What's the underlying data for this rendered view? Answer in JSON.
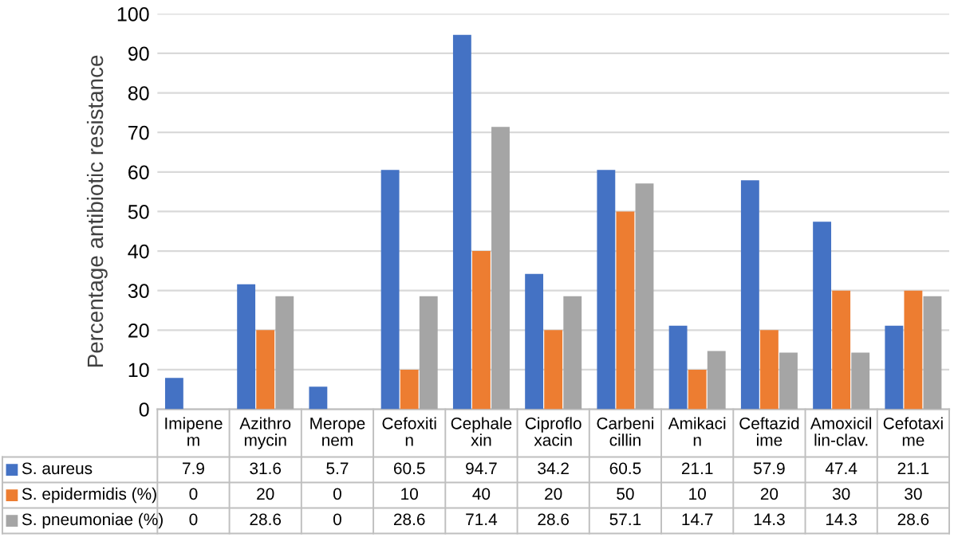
{
  "chart_data": {
    "type": "bar",
    "ylabel": "Percentage antibiotic resistance",
    "categories": [
      "Imipenem",
      "Azithromycin",
      "Meropenem",
      "Cefoxitin",
      "Cephalexin",
      "Ciprofloxacin",
      "Carbenicillin",
      "Amikacin",
      "Ceftazidime",
      "Amoxicillin-clav.",
      "Cefotaxime"
    ],
    "series": [
      {
        "name": "S. aureus",
        "color": "#4472c4",
        "values": [
          7.9,
          31.6,
          5.7,
          60.5,
          94.7,
          34.2,
          60.5,
          21.1,
          57.9,
          47.4,
          21.1
        ]
      },
      {
        "name": "S. epidermidis (%)",
        "color": "#ed7d31",
        "values": [
          0,
          20,
          0,
          10,
          40,
          20,
          50,
          10,
          20,
          30,
          30
        ]
      },
      {
        "name": "S. pneumoniae (%)",
        "color": "#a5a5a5",
        "values": [
          0,
          28.6,
          0,
          28.6,
          71.4,
          28.6,
          57.1,
          14.7,
          14.3,
          14.3,
          28.6
        ]
      }
    ],
    "ylim": [
      0,
      100
    ],
    "yticks": [
      0,
      10,
      20,
      30,
      40,
      50,
      60,
      70,
      80,
      90,
      100
    ],
    "grid": "y",
    "data_labels": true,
    "legend": "bottom"
  }
}
